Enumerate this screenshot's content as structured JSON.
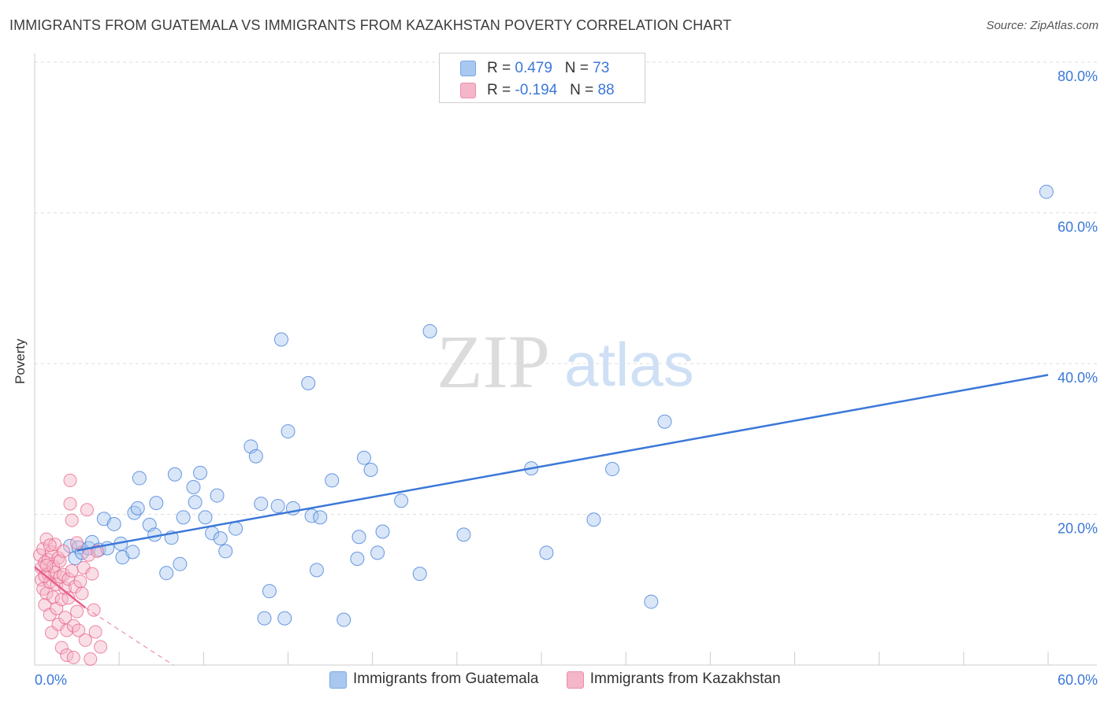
{
  "header": {
    "title": "IMMIGRANTS FROM GUATEMALA VS IMMIGRANTS FROM KAZAKHSTAN POVERTY CORRELATION CHART",
    "source": "Source: ZipAtlas.com"
  },
  "legend": {
    "rows": [
      {
        "r_label": "R = ",
        "r_value": "0.479",
        "n_label": "N = ",
        "n_value": "73",
        "color": "#a8c8f0"
      },
      {
        "r_label": "R = ",
        "r_value": "-0.194",
        "n_label": "N = ",
        "n_value": "88",
        "color": "#f4b6c8"
      }
    ]
  },
  "watermark": {
    "zip": "ZIP",
    "atlas": "atlas"
  },
  "chart_data": {
    "type": "scatter",
    "title": "IMMIGRANTS FROM GUATEMALA VS IMMIGRANTS FROM KAZAKHSTAN POVERTY CORRELATION CHART",
    "xlabel": "",
    "ylabel": "Poverty",
    "xlim": [
      0,
      60
    ],
    "ylim": [
      0,
      80
    ],
    "x_tick_labels": [
      "0.0%",
      "60.0%"
    ],
    "y_ticks": [
      20,
      40,
      60,
      80
    ],
    "y_tick_labels": [
      "20.0%",
      "40.0%",
      "60.0%",
      "80.0%"
    ],
    "grid": true,
    "colors": {
      "guatemala": "#3b78d8",
      "kazakhstan": "#e8608a",
      "axis_text": "#3b78d8"
    },
    "series": [
      {
        "name": "Immigrants from Guatemala",
        "color": "#3b78d8",
        "fill": "#a8c8f0",
        "trend": {
          "x1": 2.5,
          "y1": 15.2,
          "x2": 60.0,
          "y2": 38.5
        },
        "points": [
          [
            2.1,
            15.8
          ],
          [
            2.4,
            14.2
          ],
          [
            2.6,
            15.6
          ],
          [
            2.8,
            14.9
          ],
          [
            3.2,
            15.5
          ],
          [
            3.4,
            16.3
          ],
          [
            3.8,
            15.3
          ],
          [
            4.1,
            19.4
          ],
          [
            4.3,
            15.5
          ],
          [
            4.7,
            18.7
          ],
          [
            5.1,
            16.1
          ],
          [
            5.2,
            14.3
          ],
          [
            5.8,
            15.0
          ],
          [
            5.9,
            20.2
          ],
          [
            6.1,
            20.8
          ],
          [
            6.2,
            24.8
          ],
          [
            6.8,
            18.6
          ],
          [
            7.1,
            17.3
          ],
          [
            7.2,
            21.5
          ],
          [
            7.8,
            12.2
          ],
          [
            8.1,
            16.9
          ],
          [
            8.3,
            25.3
          ],
          [
            8.6,
            13.4
          ],
          [
            8.8,
            19.6
          ],
          [
            9.4,
            23.6
          ],
          [
            9.5,
            21.6
          ],
          [
            9.8,
            25.5
          ],
          [
            10.1,
            19.6
          ],
          [
            10.5,
            17.5
          ],
          [
            10.8,
            22.5
          ],
          [
            11.0,
            16.8
          ],
          [
            11.3,
            15.1
          ],
          [
            11.9,
            18.1
          ],
          [
            12.8,
            29.0
          ],
          [
            13.1,
            27.7
          ],
          [
            13.4,
            21.4
          ],
          [
            13.6,
            6.2
          ],
          [
            13.9,
            9.8
          ],
          [
            14.4,
            21.1
          ],
          [
            14.6,
            43.2
          ],
          [
            14.8,
            6.2
          ],
          [
            15.0,
            31.0
          ],
          [
            15.3,
            20.8
          ],
          [
            16.2,
            37.4
          ],
          [
            16.4,
            19.8
          ],
          [
            16.7,
            12.6
          ],
          [
            16.9,
            19.6
          ],
          [
            17.6,
            24.5
          ],
          [
            18.3,
            6.0
          ],
          [
            19.1,
            14.1
          ],
          [
            19.2,
            17.0
          ],
          [
            19.5,
            27.5
          ],
          [
            19.9,
            25.9
          ],
          [
            20.3,
            14.9
          ],
          [
            20.6,
            17.7
          ],
          [
            21.7,
            21.8
          ],
          [
            22.8,
            12.1
          ],
          [
            23.4,
            44.3
          ],
          [
            25.4,
            17.3
          ],
          [
            29.4,
            26.1
          ],
          [
            30.3,
            14.9
          ],
          [
            33.1,
            19.3
          ],
          [
            34.2,
            26.0
          ],
          [
            36.5,
            8.4
          ],
          [
            37.3,
            32.3
          ],
          [
            59.9,
            62.8
          ]
        ]
      },
      {
        "name": "Immigrants from Kazakhstan",
        "color": "#e8608a",
        "fill": "#f4b6c8",
        "trend": {
          "x1": 0.0,
          "y1": 13.0,
          "x2": 3.0,
          "y2": 7.6
        },
        "trend_ext": {
          "x1": 3.0,
          "y1": 7.6,
          "x2": 8.2,
          "y2": 0.0
        },
        "points": [
          [
            0.3,
            14.6
          ],
          [
            0.4,
            12.9
          ],
          [
            0.4,
            11.3
          ],
          [
            0.5,
            10.1
          ],
          [
            0.5,
            15.4
          ],
          [
            0.6,
            8.0
          ],
          [
            0.6,
            13.6
          ],
          [
            0.7,
            9.5
          ],
          [
            0.7,
            16.7
          ],
          [
            0.8,
            12.1
          ],
          [
            0.8,
            14.0
          ],
          [
            0.9,
            6.7
          ],
          [
            0.9,
            11.0
          ],
          [
            1.0,
            4.3
          ],
          [
            1.0,
            15.0
          ],
          [
            1.1,
            13.1
          ],
          [
            1.1,
            9.0
          ],
          [
            1.2,
            12.3
          ],
          [
            1.2,
            16.0
          ],
          [
            1.3,
            7.5
          ],
          [
            1.3,
            10.7
          ],
          [
            1.4,
            14.2
          ],
          [
            1.4,
            5.4
          ],
          [
            1.5,
            11.7
          ],
          [
            1.5,
            13.8
          ],
          [
            1.6,
            2.3
          ],
          [
            1.6,
            8.7
          ],
          [
            1.7,
            12.0
          ],
          [
            1.7,
            15.1
          ],
          [
            1.8,
            6.3
          ],
          [
            1.8,
            10.2
          ],
          [
            1.9,
            4.6
          ],
          [
            1.9,
            1.3
          ],
          [
            2.0,
            11.4
          ],
          [
            2.0,
            8.9
          ],
          [
            2.1,
            21.4
          ],
          [
            2.1,
            24.5
          ],
          [
            2.2,
            19.2
          ],
          [
            2.2,
            12.5
          ],
          [
            2.3,
            1.0
          ],
          [
            2.3,
            5.2
          ],
          [
            2.4,
            10.4
          ],
          [
            2.5,
            16.2
          ],
          [
            2.5,
            7.1
          ],
          [
            2.6,
            4.6
          ],
          [
            2.7,
            11.1
          ],
          [
            2.8,
            9.5
          ],
          [
            2.9,
            12.9
          ],
          [
            3.0,
            3.3
          ],
          [
            3.1,
            20.6
          ],
          [
            3.2,
            14.6
          ],
          [
            3.3,
            0.8
          ],
          [
            3.4,
            12.1
          ],
          [
            3.5,
            7.3
          ],
          [
            3.6,
            4.4
          ],
          [
            3.7,
            15.1
          ],
          [
            3.9,
            2.4
          ],
          [
            0.6,
            11.8
          ],
          [
            0.7,
            13.2
          ],
          [
            0.9,
            15.9
          ]
        ]
      }
    ]
  },
  "bottom_legend": [
    {
      "label": "Immigrants from Guatemala",
      "color": "#a8c8f0"
    },
    {
      "label": "Immigrants from Kazakhstan",
      "color": "#f4b6c8"
    }
  ]
}
